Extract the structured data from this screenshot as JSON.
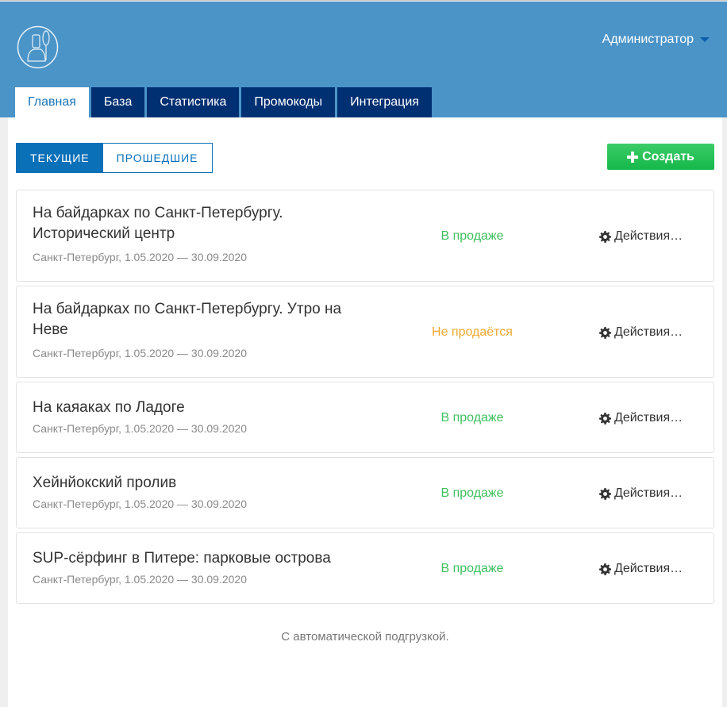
{
  "header": {
    "user": "Администратор",
    "tabs": [
      "Главная",
      "База",
      "Статистика",
      "Промокоды",
      "Интеграция"
    ],
    "active_tab": 0
  },
  "filter": {
    "current": "ТЕКУЩИЕ",
    "past": "ПРОШЕДШИЕ"
  },
  "create_label": "Создать",
  "colors": {
    "on_sale": "#3dbf5e",
    "not_on_sale": "#f0a830",
    "header": "#4b94c8",
    "tab": "#002f72"
  },
  "events": [
    {
      "title": "На байдарках по Санкт-Петербургу. Исторический центр",
      "subtitle": "Санкт-Петербург, 1.05.2020 — 30.09.2020",
      "status": "В продаже",
      "status_type": "on_sale",
      "actions": "Действия…"
    },
    {
      "title": "На байдарках по Санкт-Петербургу. Утро на Неве",
      "subtitle": "Санкт-Петербург, 1.05.2020 — 30.09.2020",
      "status": "Не продаётся",
      "status_type": "not_on_sale",
      "actions": "Действия…"
    },
    {
      "title": "На каяаках по Ладоге",
      "subtitle": "Санкт-Петербург, 1.05.2020 — 30.09.2020",
      "status": "В продаже",
      "status_type": "on_sale",
      "actions": "Действия…"
    },
    {
      "title": "Хейнйокский пролив",
      "subtitle": "Санкт-Петербург, 1.05.2020 — 30.09.2020",
      "status": "В продаже",
      "status_type": "on_sale",
      "actions": "Действия…"
    },
    {
      "title": "SUP-сёрфинг в Питере: парковые острова",
      "subtitle": "Санкт-Петербург, 1.05.2020 — 30.09.2020",
      "status": "В продаже",
      "status_type": "on_sale",
      "actions": "Действия…"
    }
  ],
  "footer": "С автоматической подгрузкой."
}
